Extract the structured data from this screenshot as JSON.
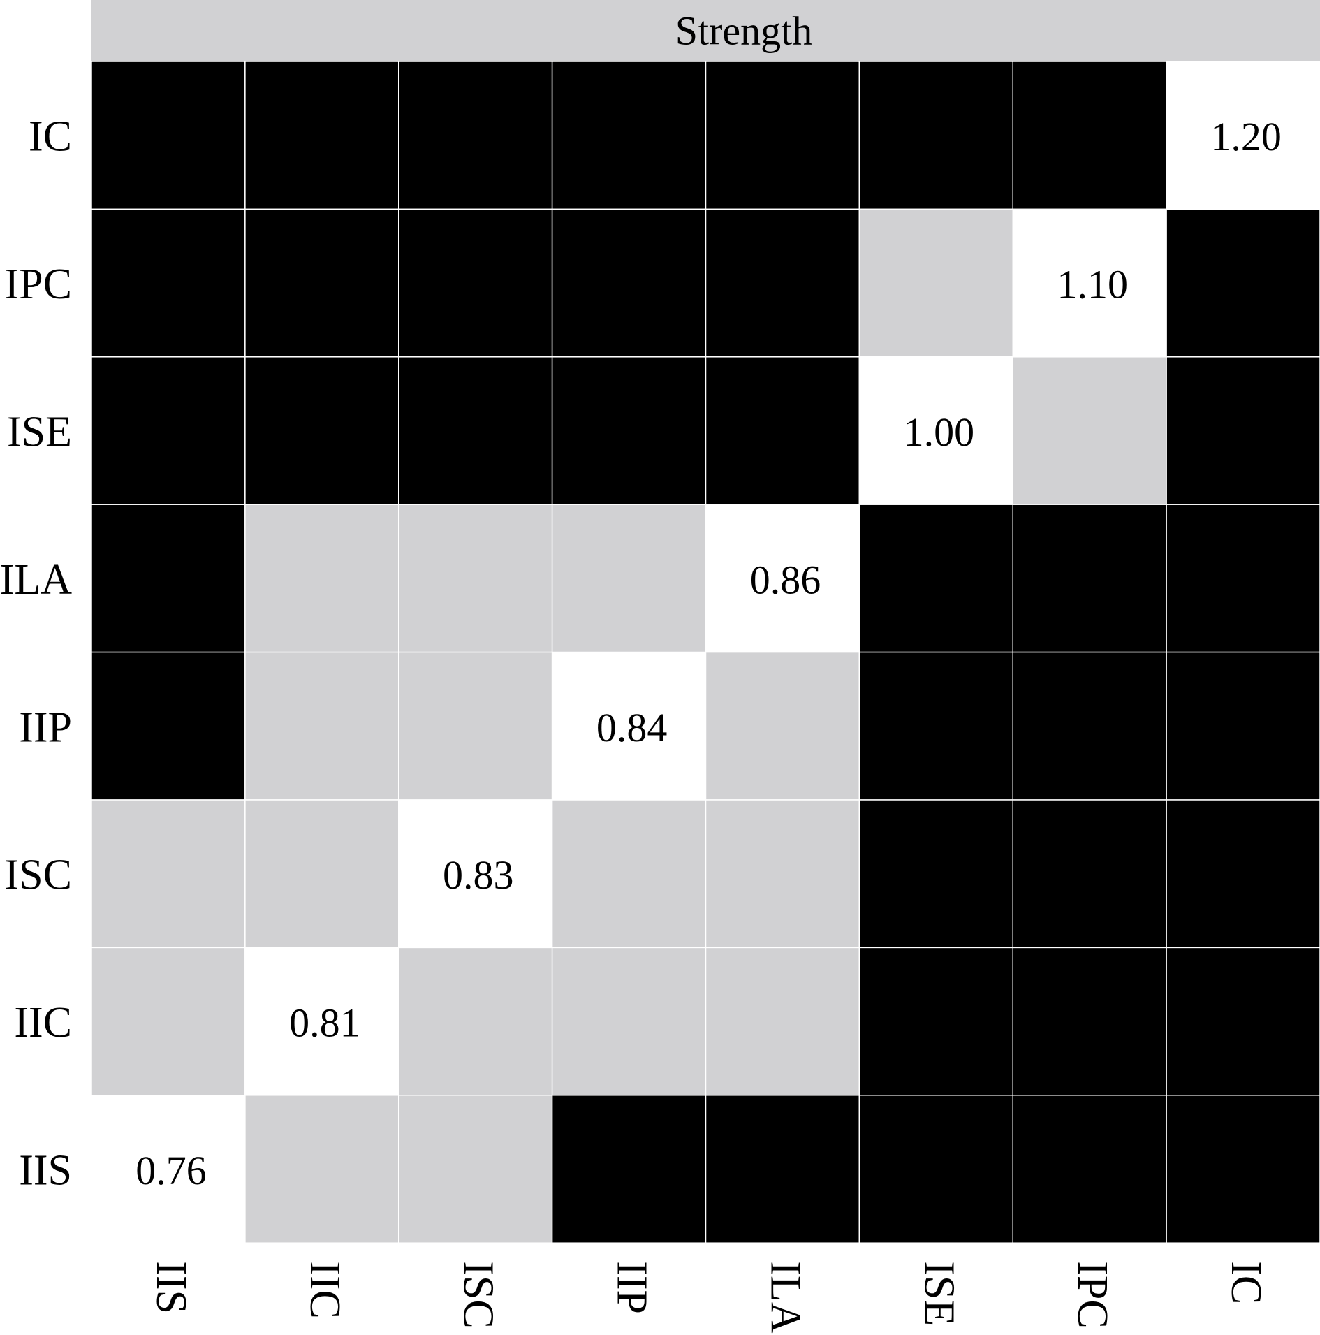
{
  "chart_data": {
    "type": "heatmap",
    "title": "Strength",
    "row_labels": [
      "IC",
      "IPC",
      "ISE",
      "ILA",
      "IIP",
      "ISC",
      "IIC",
      "IIS"
    ],
    "col_labels": [
      "IIS",
      "IIC",
      "ISC",
      "IIP",
      "ILA",
      "ISE",
      "IPC",
      "IC"
    ],
    "diagonal_values": [
      "1.20",
      "1.10",
      "1.00",
      "0.86",
      "0.84",
      "0.83",
      "0.81",
      "0.76"
    ],
    "cell_categories": [
      [
        "significant",
        "significant",
        "significant",
        "significant",
        "significant",
        "significant",
        "significant",
        "diagonal"
      ],
      [
        "significant",
        "significant",
        "significant",
        "significant",
        "significant",
        "nonsignificant",
        "diagonal",
        "significant"
      ],
      [
        "significant",
        "significant",
        "significant",
        "significant",
        "significant",
        "diagonal",
        "nonsignificant",
        "significant"
      ],
      [
        "significant",
        "nonsignificant",
        "nonsignificant",
        "nonsignificant",
        "diagonal",
        "significant",
        "significant",
        "significant"
      ],
      [
        "significant",
        "nonsignificant",
        "nonsignificant",
        "diagonal",
        "nonsignificant",
        "significant",
        "significant",
        "significant"
      ],
      [
        "nonsignificant",
        "nonsignificant",
        "diagonal",
        "nonsignificant",
        "nonsignificant",
        "significant",
        "significant",
        "significant"
      ],
      [
        "nonsignificant",
        "diagonal",
        "nonsignificant",
        "nonsignificant",
        "nonsignificant",
        "significant",
        "significant",
        "significant"
      ],
      [
        "diagonal",
        "nonsignificant",
        "nonsignificant",
        "significant",
        "significant",
        "significant",
        "significant",
        "significant"
      ]
    ],
    "colors": {
      "significant": "#000000",
      "nonsignificant": "#d1d1d3",
      "diagonal": "#ffffff",
      "title_bar": "#d1d1d3",
      "gridline": "#ffffff",
      "text": "#000000"
    },
    "legend": "none",
    "grid": true
  }
}
